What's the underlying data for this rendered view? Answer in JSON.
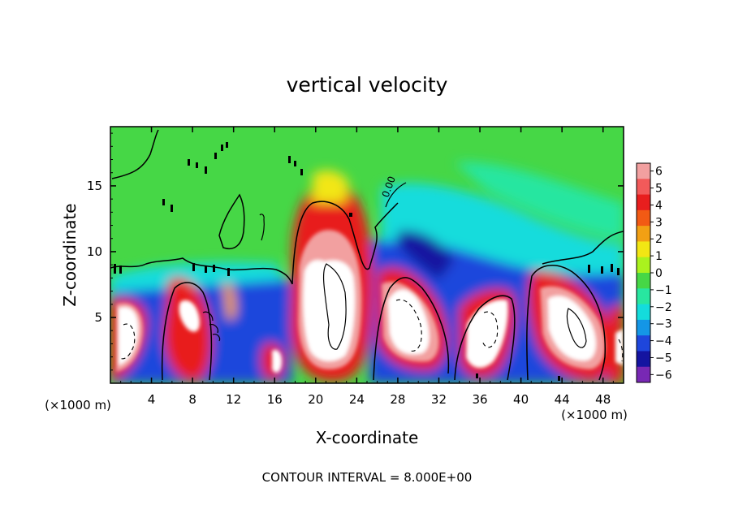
{
  "chart_data": {
    "type": "heatmap",
    "title": "vertical velocity",
    "xlabel": "X-coordinate",
    "ylabel": "Z-coordinate",
    "x_unit_left": "(×1000 m)",
    "x_unit_right": "(×1000 m)",
    "footer": "CONTOUR INTERVAL = 8.000E+00",
    "xlim": [
      0,
      50
    ],
    "ylim": [
      0,
      19.5
    ],
    "x_ticks": [
      4,
      8,
      12,
      16,
      20,
      24,
      28,
      32,
      36,
      40,
      44,
      48
    ],
    "y_ticks": [
      5,
      10,
      15
    ],
    "zlim": [
      -6,
      6
    ],
    "colorbar": {
      "levels": [
        6,
        5,
        4,
        3,
        2,
        1,
        0,
        -1,
        -2,
        -3,
        -4,
        -5,
        -6
      ],
      "colors": [
        "#f2a0a0",
        "#f25a5a",
        "#e81e1e",
        "#f25a14",
        "#f2a014",
        "#f2e614",
        "#aaf21e",
        "#46d746",
        "#28e6a0",
        "#14dcdc",
        "#1496e6",
        "#1e46dc",
        "#1414a0",
        "#7828b4"
      ]
    },
    "contour_label": "0.00",
    "features": [
      {
        "kind": "updraft",
        "x": 3,
        "z": 4.5,
        "w": 10
      },
      {
        "kind": "updraft",
        "x": 7.5,
        "z": 5.2,
        "w": 8
      },
      {
        "kind": "updraft",
        "x": 16.3,
        "z": 1.7,
        "w": 6
      },
      {
        "kind": "updraft",
        "x": 21.6,
        "z": 8,
        "w": 14
      },
      {
        "kind": "updraft",
        "x": 30,
        "z": 5,
        "w": 11
      },
      {
        "kind": "updraft",
        "x": 36.8,
        "z": 4.6,
        "w": 10
      },
      {
        "kind": "updraft",
        "x": 44.5,
        "z": 5,
        "w": 11
      },
      {
        "kind": "updraft",
        "x": 49.5,
        "z": 3,
        "w": 6
      },
      {
        "kind": "downdraft",
        "x": 31,
        "z": 9.5,
        "w": -4
      },
      {
        "kind": "downdraft",
        "x": 2.5,
        "z": 6.5,
        "w": -4
      },
      {
        "kind": "downdraft",
        "x": 14,
        "z": 5.5,
        "w": -4
      }
    ]
  }
}
